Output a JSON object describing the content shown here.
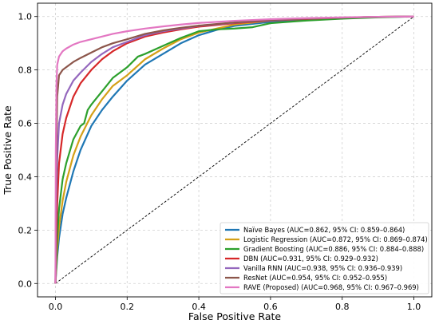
{
  "chart_data": {
    "type": "line",
    "title": "",
    "xlabel": "False Positive Rate",
    "ylabel": "True Positive Rate",
    "xlim": [
      -0.05,
      1.05
    ],
    "ylim": [
      -0.05,
      1.05
    ],
    "xticks": [
      "0.0",
      "0.2",
      "0.4",
      "0.6",
      "0.8",
      "1.0"
    ],
    "yticks": [
      "0.0",
      "0.2",
      "0.4",
      "0.6",
      "0.8",
      "1.0"
    ],
    "grid": true,
    "legend_position": "bottom-right",
    "diagonal_reference": true,
    "series": [
      {
        "name": "Naïve Bayes (AUC=0.862, 95% CI: 0.859–0.864)",
        "color": "#1f77b4",
        "x": [
          0,
          0.005,
          0.01,
          0.02,
          0.03,
          0.05,
          0.07,
          0.1,
          0.13,
          0.16,
          0.2,
          0.25,
          0.3,
          0.35,
          0.4,
          0.45,
          0.5,
          0.6,
          0.7,
          0.8,
          0.9,
          1.0
        ],
        "y": [
          0,
          0.1,
          0.17,
          0.26,
          0.32,
          0.42,
          0.5,
          0.59,
          0.65,
          0.7,
          0.76,
          0.82,
          0.86,
          0.9,
          0.93,
          0.95,
          0.965,
          0.98,
          0.99,
          0.995,
          0.998,
          1.0
        ]
      },
      {
        "name": "Logistic Regression (AUC=0.872, 95% CI: 0.869–0.874)",
        "color": "#d4a017",
        "x": [
          0,
          0.005,
          0.01,
          0.02,
          0.03,
          0.05,
          0.07,
          0.1,
          0.13,
          0.16,
          0.2,
          0.25,
          0.3,
          0.35,
          0.4,
          0.45,
          0.5,
          0.6,
          0.7,
          0.8,
          0.9,
          1.0
        ],
        "y": [
          0,
          0.13,
          0.21,
          0.31,
          0.38,
          0.48,
          0.55,
          0.63,
          0.69,
          0.74,
          0.78,
          0.84,
          0.88,
          0.915,
          0.94,
          0.955,
          0.97,
          0.985,
          0.992,
          0.996,
          0.999,
          1.0
        ]
      },
      {
        "name": "Gradient Boosting (AUC=0.886, 95% CI: 0.884–0.888)",
        "color": "#2ca02c",
        "x": [
          0,
          0.005,
          0.01,
          0.02,
          0.03,
          0.05,
          0.07,
          0.08,
          0.09,
          0.1,
          0.13,
          0.16,
          0.2,
          0.23,
          0.25,
          0.3,
          0.35,
          0.4,
          0.45,
          0.5,
          0.55,
          0.6,
          0.7,
          0.8,
          0.9,
          1.0
        ],
        "y": [
          0,
          0.17,
          0.28,
          0.39,
          0.45,
          0.54,
          0.59,
          0.6,
          0.65,
          0.67,
          0.72,
          0.77,
          0.81,
          0.85,
          0.86,
          0.89,
          0.92,
          0.945,
          0.952,
          0.955,
          0.96,
          0.975,
          0.985,
          0.992,
          0.997,
          1.0
        ]
      },
      {
        "name": "DBN (AUC=0.931, 95% CI: 0.929–0.932)",
        "color": "#d62728",
        "x": [
          0,
          0.003,
          0.005,
          0.01,
          0.02,
          0.03,
          0.05,
          0.07,
          0.1,
          0.13,
          0.16,
          0.2,
          0.25,
          0.3,
          0.35,
          0.4,
          0.5,
          0.6,
          0.7,
          0.8,
          0.9,
          1.0
        ],
        "y": [
          0,
          0.2,
          0.3,
          0.45,
          0.56,
          0.62,
          0.7,
          0.75,
          0.8,
          0.84,
          0.87,
          0.9,
          0.925,
          0.94,
          0.952,
          0.962,
          0.975,
          0.985,
          0.991,
          0.996,
          0.999,
          1.0
        ]
      },
      {
        "name": "Vanilla RNN (AUC=0.938, 95% CI: 0.936–0.939)",
        "color": "#9467bd",
        "x": [
          0,
          0.002,
          0.005,
          0.01,
          0.02,
          0.03,
          0.05,
          0.07,
          0.1,
          0.13,
          0.16,
          0.2,
          0.25,
          0.3,
          0.35,
          0.4,
          0.5,
          0.6,
          0.7,
          0.8,
          0.9,
          1.0
        ],
        "y": [
          0,
          0.3,
          0.47,
          0.6,
          0.67,
          0.71,
          0.76,
          0.79,
          0.83,
          0.86,
          0.885,
          0.905,
          0.93,
          0.945,
          0.955,
          0.965,
          0.977,
          0.986,
          0.992,
          0.996,
          0.999,
          1.0
        ]
      },
      {
        "name": "ResNet (AUC=0.954, 95% CI: 0.952–0.955)",
        "color": "#8c564b",
        "x": [
          0,
          0.002,
          0.005,
          0.01,
          0.02,
          0.03,
          0.05,
          0.07,
          0.1,
          0.13,
          0.16,
          0.2,
          0.25,
          0.3,
          0.35,
          0.4,
          0.5,
          0.6,
          0.7,
          0.8,
          0.9,
          1.0
        ],
        "y": [
          0,
          0.45,
          0.7,
          0.78,
          0.8,
          0.81,
          0.83,
          0.845,
          0.865,
          0.885,
          0.9,
          0.915,
          0.935,
          0.948,
          0.958,
          0.966,
          0.978,
          0.987,
          0.992,
          0.996,
          0.999,
          1.0
        ]
      },
      {
        "name": "RAVE (Proposed) (AUC=0.968, 95% CI: 0.967–0.969)",
        "color": "#e377c2",
        "x": [
          0,
          0.001,
          0.003,
          0.005,
          0.01,
          0.02,
          0.03,
          0.05,
          0.07,
          0.1,
          0.13,
          0.16,
          0.2,
          0.25,
          0.3,
          0.35,
          0.4,
          0.5,
          0.6,
          0.7,
          0.8,
          0.9,
          1.0
        ],
        "y": [
          0,
          0.5,
          0.75,
          0.82,
          0.85,
          0.87,
          0.88,
          0.895,
          0.905,
          0.915,
          0.925,
          0.935,
          0.945,
          0.955,
          0.963,
          0.97,
          0.976,
          0.984,
          0.99,
          0.994,
          0.997,
          0.999,
          1.0
        ]
      }
    ]
  }
}
